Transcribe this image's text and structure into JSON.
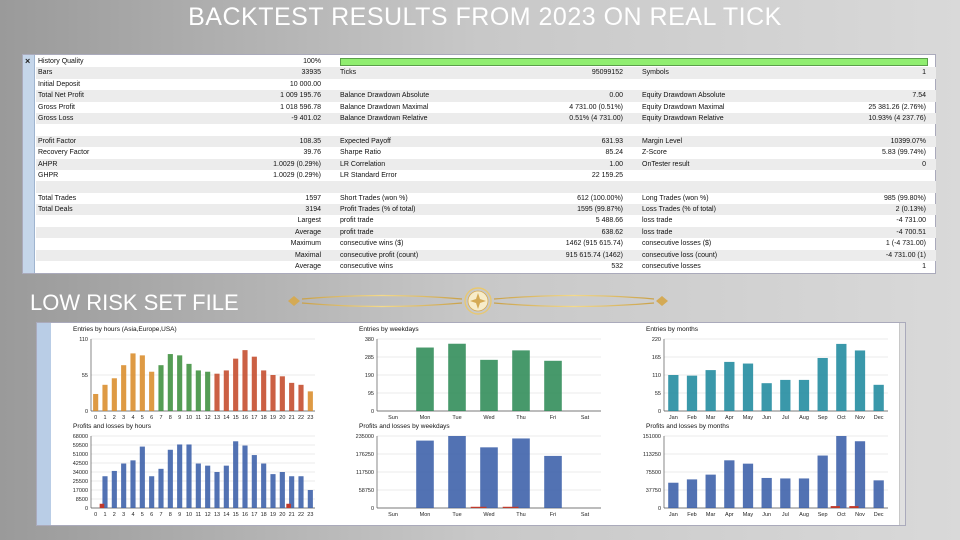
{
  "headline": "BACKTEST RESULTS FROM 2023 ON REAL TICK",
  "subheadline": "LOW RISK SET FILE",
  "report": {
    "close_glyph": "×",
    "rows": [
      {
        "c1": "History Quality",
        "c2": "100%",
        "bar": true
      },
      {
        "c1": "Bars",
        "c2": "33935",
        "c3": "Ticks",
        "c4": "95099152",
        "c5": "Symbols",
        "c6": "1"
      },
      {
        "c1": "Initial Deposit",
        "c2": "10 000.00"
      },
      {
        "c1": "Total Net Profit",
        "c2": "1 009 195.76",
        "c3": "Balance Drawdown Absolute",
        "c4": "0.00",
        "c5": "Equity Drawdown Absolute",
        "c6": "7.54"
      },
      {
        "c1": "Gross Profit",
        "c2": "1 018 596.78",
        "c3": "Balance Drawdown Maximal",
        "c4": "4 731.00 (0.51%)",
        "c5": "Equity Drawdown Maximal",
        "c6": "25 381.26 (2.76%)"
      },
      {
        "c1": "Gross Loss",
        "c2": "-9 401.02",
        "c3": "Balance Drawdown Relative",
        "c4": "0.51% (4 731.00)",
        "c5": "Equity Drawdown Relative",
        "c6": "10.93% (4 237.76)"
      },
      {},
      {
        "c1": "Profit Factor",
        "c2": "108.35",
        "c3": "Expected Payoff",
        "c4": "631.93",
        "c5": "Margin Level",
        "c6": "10399.07%"
      },
      {
        "c1": "Recovery Factor",
        "c2": "39.76",
        "c3": "Sharpe Ratio",
        "c4": "85.24",
        "c5": "Z-Score",
        "c6": "5.83 (99.74%)"
      },
      {
        "c1": "AHPR",
        "c2": "1.0029 (0.29%)",
        "c3": "LR Correlation",
        "c4": "1.00",
        "c5": "OnTester result",
        "c6": "0"
      },
      {
        "c1": "GHPR",
        "c2": "1.0029 (0.29%)",
        "c3": "LR Standard Error",
        "c4": "22 159.25"
      },
      {},
      {
        "c1": "Total Trades",
        "c2": "1597",
        "c3": "Short Trades (won %)",
        "c4": "612 (100.00%)",
        "c5": "Long Trades (won %)",
        "c6": "985 (99.80%)"
      },
      {
        "c1": "Total Deals",
        "c2": "3194",
        "c3": "Profit Trades (% of total)",
        "c4": "1595 (99.87%)",
        "c5": "Loss Trades (% of total)",
        "c6": "2 (0.13%)"
      },
      {
        "c1r": "Largest",
        "c3": "profit trade",
        "c4": "5 488.66",
        "c5": "loss trade",
        "c6": "-4 731.00"
      },
      {
        "c1r": "Average",
        "c3": "profit trade",
        "c4": "638.62",
        "c5": "loss trade",
        "c6": "-4 700.51"
      },
      {
        "c1r": "Maximum",
        "c3": "consecutive wins ($)",
        "c4": "1462 (915 615.74)",
        "c5": "consecutive losses ($)",
        "c6": "1 (-4 731.00)"
      },
      {
        "c1r": "Maximal",
        "c3": "consecutive profit (count)",
        "c4": "915 615.74 (1462)",
        "c5": "consecutive loss (count)",
        "c6": "-4 731.00 (1)"
      },
      {
        "c1r": "Average",
        "c3": "consecutive wins",
        "c4": "532",
        "c5": "consecutive losses",
        "c6": "1"
      }
    ]
  },
  "chart_data": [
    {
      "type": "bar",
      "title": "Entries by hours (Asia,Europe,USA)",
      "categories": [
        "0",
        "1",
        "2",
        "3",
        "4",
        "5",
        "6",
        "7",
        "8",
        "9",
        "10",
        "11",
        "12",
        "13",
        "14",
        "15",
        "16",
        "17",
        "18",
        "19",
        "20",
        "21",
        "22",
        "23"
      ],
      "values": [
        26,
        40,
        50,
        70,
        88,
        85,
        60,
        70,
        87,
        85,
        72,
        62,
        60,
        57,
        62,
        80,
        93,
        83,
        62,
        55,
        53,
        43,
        40,
        30
      ],
      "colors": [
        "#d98c2a",
        "#d98c2a",
        "#d98c2a",
        "#d98c2a",
        "#d98c2a",
        "#d98c2a",
        "#d98c2a",
        "#3d8f3d",
        "#3d8f3d",
        "#3d8f3d",
        "#3d8f3d",
        "#3d8f3d",
        "#3d8f3d",
        "#c44a2a",
        "#c44a2a",
        "#c44a2a",
        "#c44a2a",
        "#c44a2a",
        "#c44a2a",
        "#c44a2a",
        "#c44a2a",
        "#c44a2a",
        "#c44a2a",
        "#d98c2a"
      ],
      "yticks": [
        "0",
        "55",
        "110"
      ],
      "ylim": [
        0,
        110
      ]
    },
    {
      "type": "bar",
      "title": "Entries by weekdays",
      "categories": [
        "Sun",
        "Mon",
        "Tue",
        "Wed",
        "Thu",
        "Fri",
        "Sat"
      ],
      "values": [
        0,
        335,
        355,
        270,
        320,
        265,
        0
      ],
      "colors": [
        "#2e8b57",
        "#2e8b57",
        "#2e8b57",
        "#2e8b57",
        "#2e8b57",
        "#2e8b57",
        "#2e8b57"
      ],
      "yticks": [
        "0",
        "95",
        "190",
        "285",
        "380"
      ],
      "ylim": [
        0,
        380
      ]
    },
    {
      "type": "bar",
      "title": "Entries by months",
      "categories": [
        "Jan",
        "Feb",
        "Mar",
        "Apr",
        "May",
        "Jun",
        "Jul",
        "Aug",
        "Sep",
        "Oct",
        "Nov",
        "Dec"
      ],
      "values": [
        110,
        108,
        125,
        150,
        145,
        85,
        95,
        95,
        162,
        205,
        185,
        80
      ],
      "colors": [
        "#1f8a9e",
        "#1f8a9e",
        "#1f8a9e",
        "#1f8a9e",
        "#1f8a9e",
        "#1f8a9e",
        "#1f8a9e",
        "#1f8a9e",
        "#1f8a9e",
        "#1f8a9e",
        "#1f8a9e",
        "#1f8a9e"
      ],
      "yticks": [
        "0",
        "55",
        "110",
        "165",
        "220"
      ],
      "ylim": [
        0,
        220
      ]
    },
    {
      "type": "bar",
      "title": "Profits and losses by hours",
      "categories": [
        "0",
        "1",
        "2",
        "3",
        "4",
        "5",
        "6",
        "7",
        "8",
        "9",
        "10",
        "11",
        "12",
        "13",
        "14",
        "15",
        "16",
        "17",
        "18",
        "19",
        "20",
        "21",
        "22",
        "23"
      ],
      "values": [
        0,
        30000,
        35000,
        42000,
        45000,
        58000,
        30000,
        37000,
        55000,
        60000,
        60000,
        42000,
        40000,
        34000,
        40000,
        63000,
        59000,
        50000,
        42000,
        32000,
        34000,
        30000,
        30000,
        17000
      ],
      "losses": [
        0,
        4000,
        0,
        0,
        0,
        0,
        0,
        0,
        0,
        0,
        0,
        0,
        0,
        0,
        0,
        0,
        0,
        0,
        0,
        0,
        0,
        4000,
        0,
        0
      ],
      "colors": [
        "#3a5fa8"
      ],
      "loss_color": "#c0392b",
      "yticks": [
        "0",
        "8500",
        "17000",
        "25500",
        "34000",
        "42500",
        "51000",
        "59500",
        "68000"
      ],
      "ylim": [
        0,
        68000
      ]
    },
    {
      "type": "bar",
      "title": "Profits and losses by weekdays",
      "categories": [
        "Sun",
        "Mon",
        "Tue",
        "Wed",
        "Thu",
        "Fri",
        "Sat"
      ],
      "values": [
        0,
        220000,
        235000,
        198000,
        227000,
        170000,
        0
      ],
      "losses": [
        0,
        0,
        0,
        4000,
        4000,
        0,
        0
      ],
      "colors": [
        "#3a5fa8"
      ],
      "loss_color": "#c0392b",
      "yticks": [
        "0",
        "58750",
        "117500",
        "176250",
        "235000"
      ],
      "ylim": [
        0,
        235000
      ]
    },
    {
      "type": "bar",
      "title": "Profits and losses by months",
      "categories": [
        "Jan",
        "Feb",
        "Mar",
        "Apr",
        "May",
        "Jun",
        "Jul",
        "Aug",
        "Sep",
        "Oct",
        "Nov",
        "Dec"
      ],
      "values": [
        53000,
        60000,
        70000,
        100000,
        93000,
        63000,
        62000,
        62000,
        110000,
        151000,
        140000,
        58000
      ],
      "losses": [
        0,
        0,
        0,
        0,
        0,
        0,
        0,
        0,
        0,
        4000,
        4000,
        0
      ],
      "colors": [
        "#3a5fa8"
      ],
      "loss_color": "#c0392b",
      "yticks": [
        "0",
        "37750",
        "75500",
        "113250",
        "151000"
      ],
      "ylim": [
        0,
        151000
      ]
    }
  ]
}
